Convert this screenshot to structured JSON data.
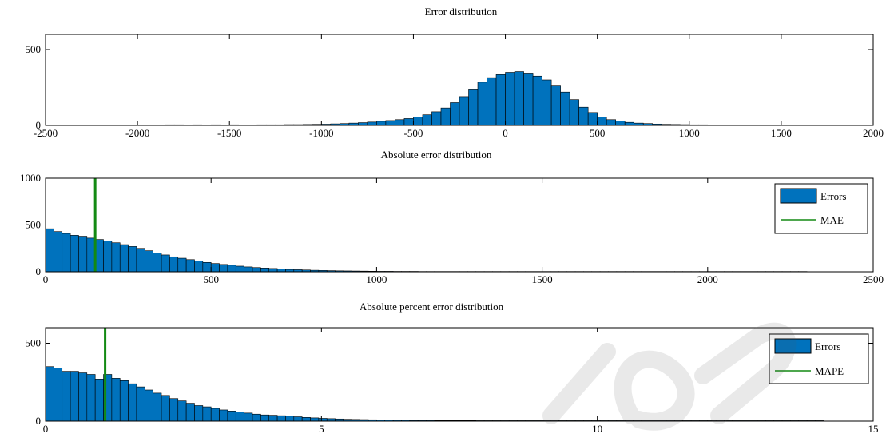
{
  "colors": {
    "bar_fill": "#0072bd",
    "bar_stroke": "#000000",
    "line": "#138a13",
    "axis": "#000000",
    "background": "#ffffff"
  },
  "chart_data": [
    {
      "type": "bar",
      "title": "Error distribution",
      "xlabel": "",
      "ylabel": "",
      "xlim": [
        -2500,
        2000
      ],
      "ylim": [
        0,
        600
      ],
      "xticks": [
        "-2500",
        "-2000",
        "-1500",
        "-1000",
        "-500",
        "0",
        "500",
        "1000",
        "1500",
        "2000"
      ],
      "yticks": [
        "0",
        "500"
      ],
      "grid": false,
      "bin_start": -2250,
      "bin_width": 50,
      "values": [
        3,
        2,
        2,
        3,
        2,
        3,
        2,
        2,
        4,
        4,
        3,
        4,
        2,
        4,
        2,
        4,
        3,
        3,
        4,
        4,
        4,
        5,
        5,
        6,
        7,
        8,
        10,
        12,
        15,
        18,
        22,
        27,
        32,
        38,
        45,
        55,
        70,
        90,
        115,
        150,
        190,
        240,
        285,
        315,
        335,
        350,
        355,
        345,
        325,
        300,
        265,
        220,
        170,
        120,
        85,
        55,
        38,
        28,
        20,
        15,
        12,
        9,
        7,
        6,
        5,
        4,
        4,
        3,
        3,
        3,
        2,
        2,
        3,
        2,
        2,
        2,
        2,
        2,
        2,
        2,
        2
      ]
    },
    {
      "type": "bar",
      "title": "Absolute error distribution",
      "xlabel": "",
      "ylabel": "",
      "xlim": [
        0,
        2500
      ],
      "ylim": [
        0,
        1000
      ],
      "xticks": [
        "0",
        "500",
        "1000",
        "1500",
        "2000",
        "2500"
      ],
      "yticks": [
        "0",
        "500",
        "1000"
      ],
      "grid": false,
      "legend": {
        "position": "top-right",
        "entries": [
          "Errors",
          "MAE"
        ]
      },
      "bin_start": 0,
      "bin_width": 25,
      "values": [
        460,
        430,
        410,
        390,
        380,
        360,
        345,
        330,
        310,
        290,
        270,
        250,
        225,
        200,
        180,
        160,
        145,
        130,
        115,
        100,
        88,
        78,
        70,
        60,
        52,
        45,
        40,
        35,
        30,
        25,
        22,
        19,
        16,
        14,
        12,
        10,
        9,
        8,
        7,
        6,
        5,
        5,
        4,
        4,
        4,
        3,
        3,
        3,
        3,
        3,
        3,
        3,
        3,
        3,
        3,
        3,
        3,
        3,
        3,
        3,
        3,
        3,
        3,
        3,
        3,
        3,
        3,
        3,
        3,
        3,
        3,
        3,
        3,
        3,
        3,
        3,
        3,
        3,
        3,
        3,
        3,
        3,
        3,
        3,
        3,
        3,
        3,
        3,
        3,
        3,
        3,
        3
      ],
      "reference_line": {
        "name": "MAE",
        "x": 150
      }
    },
    {
      "type": "bar",
      "title": "Absolute percent error distribution",
      "xlabel": "",
      "ylabel": "",
      "xlim": [
        0,
        15
      ],
      "ylim": [
        0,
        600
      ],
      "xticks": [
        "0",
        "5",
        "10",
        "15"
      ],
      "yticks": [
        "0",
        "500"
      ],
      "grid": false,
      "legend": {
        "position": "top-right",
        "entries": [
          "Errors",
          "MAPE"
        ]
      },
      "bin_start": 0,
      "bin_width": 0.15,
      "values": [
        350,
        340,
        320,
        320,
        310,
        300,
        270,
        300,
        275,
        260,
        240,
        220,
        200,
        180,
        165,
        145,
        130,
        115,
        100,
        92,
        82,
        72,
        65,
        58,
        52,
        45,
        40,
        38,
        35,
        32,
        28,
        24,
        21,
        18,
        16,
        14,
        12,
        11,
        10,
        9,
        8,
        7,
        6,
        6,
        5,
        5,
        5,
        4,
        4,
        4,
        4,
        4,
        3,
        3,
        3,
        3,
        3,
        3,
        3,
        3,
        3,
        3,
        3,
        3,
        3,
        3,
        3,
        3,
        3,
        3,
        3,
        3,
        3,
        3,
        3,
        3,
        3,
        3,
        3,
        3,
        3,
        3,
        3,
        3,
        3,
        3,
        3,
        3,
        3,
        3,
        3,
        3,
        3,
        3
      ],
      "reference_line": {
        "name": "MAPE",
        "x": 1.08
      }
    }
  ]
}
